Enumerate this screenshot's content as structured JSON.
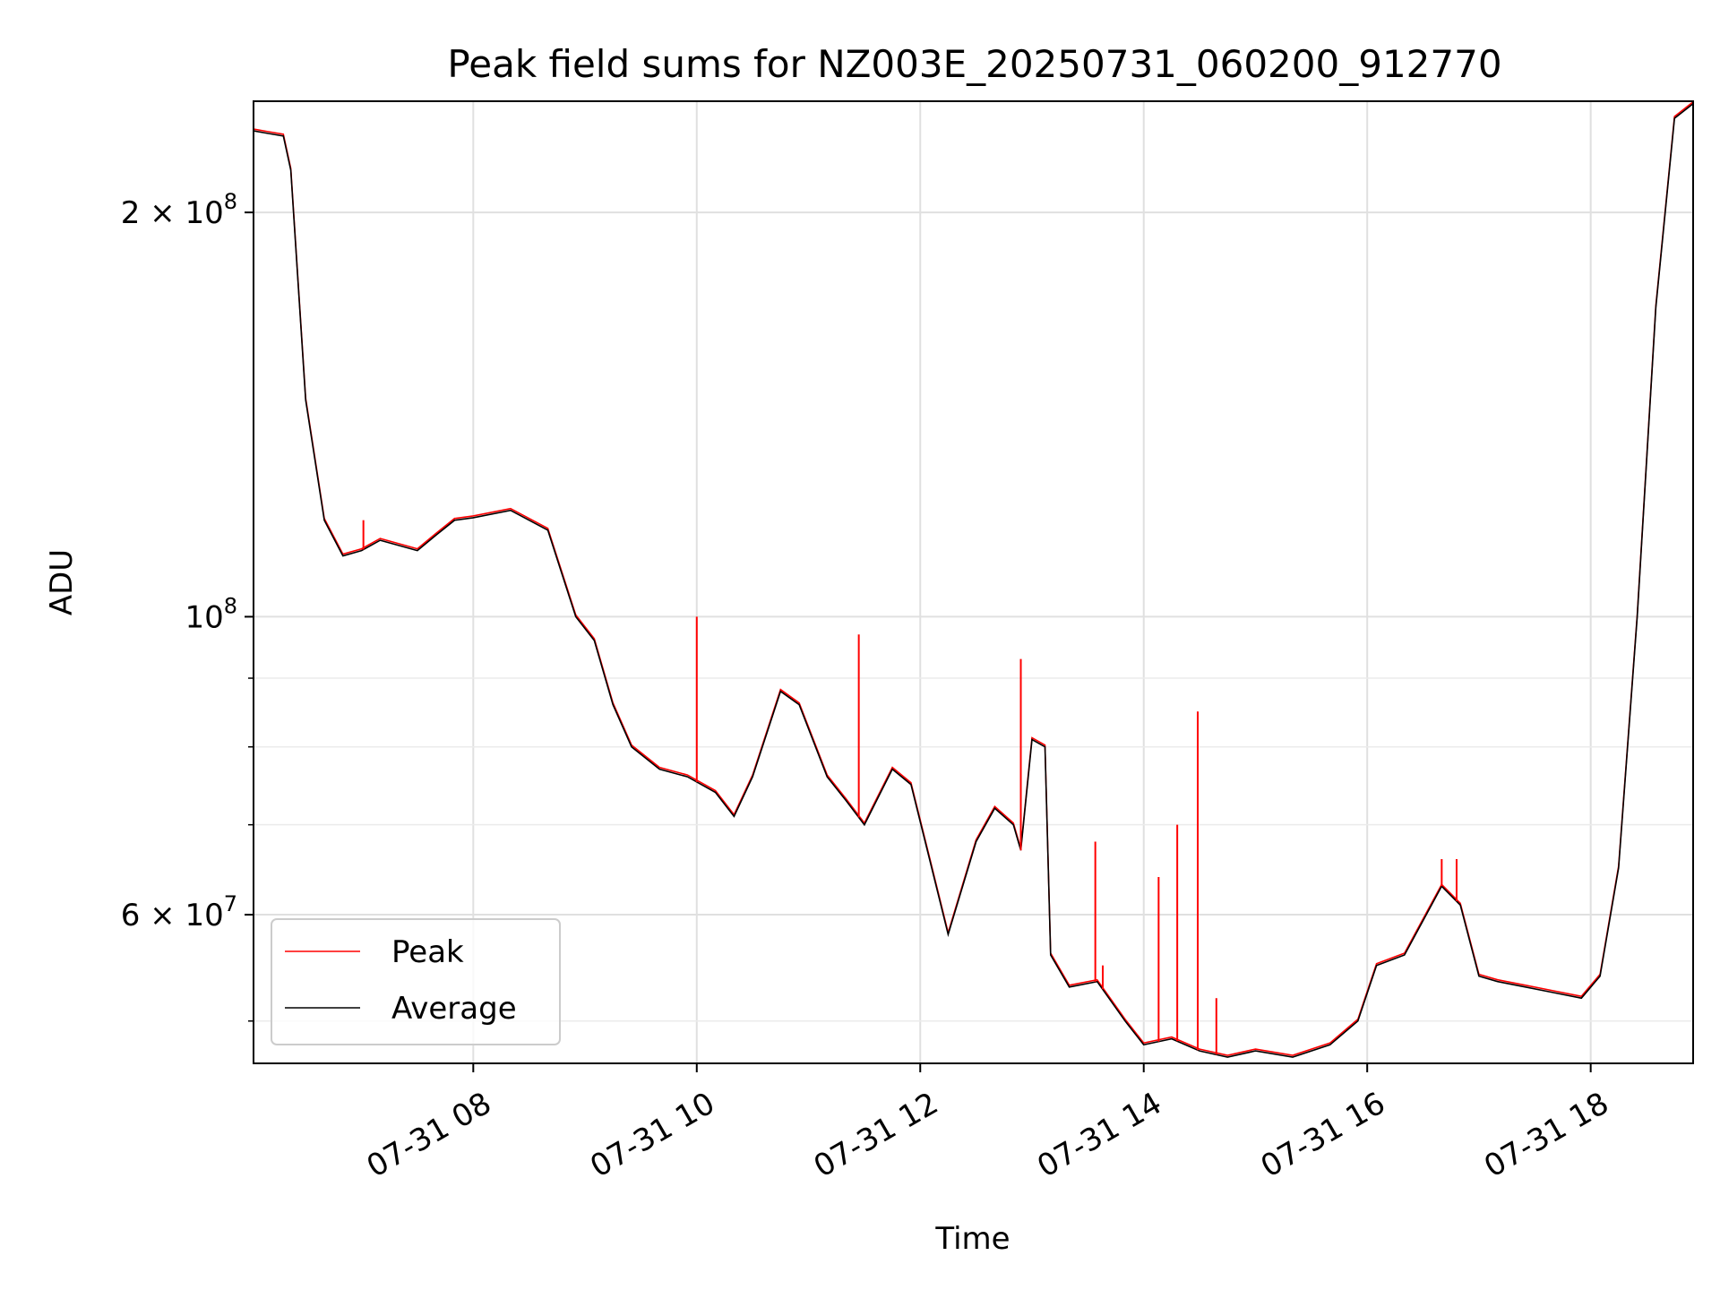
{
  "chart_data": {
    "type": "line",
    "title": "Peak field sums for NZ003E_20250731_060200_912770",
    "xlabel": "Time",
    "ylabel": "ADU",
    "x_axis_type": "datetime",
    "xlim": [
      "2025-07-31 06:02",
      "2025-07-31 18:55"
    ],
    "ylim": [
      46500000,
      242000000
    ],
    "yscale": "log",
    "grid": true,
    "legend": {
      "placement": "lower-left"
    },
    "x_ticks": [
      {
        "value": "2025-07-31 08:00",
        "label": "07-31 08"
      },
      {
        "value": "2025-07-31 10:00",
        "label": "07-31 10"
      },
      {
        "value": "2025-07-31 12:00",
        "label": "07-31 12"
      },
      {
        "value": "2025-07-31 14:00",
        "label": "07-31 14"
      },
      {
        "value": "2025-07-31 16:00",
        "label": "07-31 16"
      },
      {
        "value": "2025-07-31 18:00",
        "label": "07-31 18"
      }
    ],
    "y_ticks_major": [
      {
        "value": 100000000,
        "base": "10",
        "exp": "8",
        "mant": ""
      },
      {
        "value": 200000000,
        "base": "10",
        "exp": "8",
        "mant": "2"
      },
      {
        "value": 60000000,
        "base": "10",
        "exp": "7",
        "mant": "6"
      }
    ],
    "y_ticks_minor": [
      50000000,
      70000000,
      80000000,
      90000000
    ],
    "series": [
      {
        "name": "Peak",
        "color": "#ff0000",
        "x": [
          "2025-07-31 07:01",
          "2025-07-31 10:00",
          "2025-07-31 11:27",
          "2025-07-31 12:54",
          "2025-07-31 13:34",
          "2025-07-31 13:38",
          "2025-07-31 14:08",
          "2025-07-31 14:18",
          "2025-07-31 14:29",
          "2025-07-31 14:39",
          "2025-07-31 16:40",
          "2025-07-31 16:48"
        ],
        "y": [
          118000000,
          100000000,
          97000000,
          93000000,
          68000000,
          55000000,
          64000000,
          70000000,
          85000000,
          52000000,
          66000000,
          66000000
        ]
      },
      {
        "name": "Average",
        "color": "#000000",
        "x": [
          "2025-07-31 06:02",
          "2025-07-31 06:10",
          "2025-07-31 06:18",
          "2025-07-31 06:22",
          "2025-07-31 06:30",
          "2025-07-31 06:40",
          "2025-07-31 06:50",
          "2025-07-31 07:00",
          "2025-07-31 07:10",
          "2025-07-31 07:20",
          "2025-07-31 07:30",
          "2025-07-31 07:40",
          "2025-07-31 07:50",
          "2025-07-31 08:00",
          "2025-07-31 08:20",
          "2025-07-31 08:40",
          "2025-07-31 08:55",
          "2025-07-31 09:05",
          "2025-07-31 09:15",
          "2025-07-31 09:25",
          "2025-07-31 09:40",
          "2025-07-31 09:55",
          "2025-07-31 10:10",
          "2025-07-31 10:20",
          "2025-07-31 10:30",
          "2025-07-31 10:45",
          "2025-07-31 10:55",
          "2025-07-31 11:10",
          "2025-07-31 11:20",
          "2025-07-31 11:30",
          "2025-07-31 11:45",
          "2025-07-31 11:55",
          "2025-07-31 12:05",
          "2025-07-31 12:15",
          "2025-07-31 12:30",
          "2025-07-31 12:40",
          "2025-07-31 12:50",
          "2025-07-31 12:54",
          "2025-07-31 13:00",
          "2025-07-31 13:07",
          "2025-07-31 13:10",
          "2025-07-31 13:20",
          "2025-07-31 13:35",
          "2025-07-31 13:50",
          "2025-07-31 14:00",
          "2025-07-31 14:15",
          "2025-07-31 14:30",
          "2025-07-31 14:45",
          "2025-07-31 15:00",
          "2025-07-31 15:20",
          "2025-07-31 15:40",
          "2025-07-31 15:55",
          "2025-07-31 16:05",
          "2025-07-31 16:20",
          "2025-07-31 16:40",
          "2025-07-31 16:50",
          "2025-07-31 17:00",
          "2025-07-31 17:10",
          "2025-07-31 17:25",
          "2025-07-31 17:40",
          "2025-07-31 17:55",
          "2025-07-31 18:05",
          "2025-07-31 18:15",
          "2025-07-31 18:25",
          "2025-07-31 18:35",
          "2025-07-31 18:45",
          "2025-07-31 18:55"
        ],
        "y": [
          230000000,
          229000000,
          228000000,
          215000000,
          145000000,
          118000000,
          111000000,
          112000000,
          114000000,
          113000000,
          112000000,
          115000000,
          118000000,
          118500000,
          120000000,
          116000000,
          100000000,
          96000000,
          86000000,
          80000000,
          77000000,
          76000000,
          74000000,
          71000000,
          76000000,
          88000000,
          86000000,
          76000000,
          73000000,
          70000000,
          77000000,
          75000000,
          66000000,
          58000000,
          68000000,
          72000000,
          70000000,
          67000000,
          81000000,
          80000000,
          56000000,
          53000000,
          53500000,
          50000000,
          48000000,
          48500000,
          47500000,
          47000000,
          47500000,
          47000000,
          48000000,
          50000000,
          55000000,
          56000000,
          63000000,
          61000000,
          54000000,
          53500000,
          53000000,
          52500000,
          52000000,
          54000000,
          65000000,
          100000000,
          170000000,
          235000000,
          241000000
        ]
      }
    ]
  }
}
